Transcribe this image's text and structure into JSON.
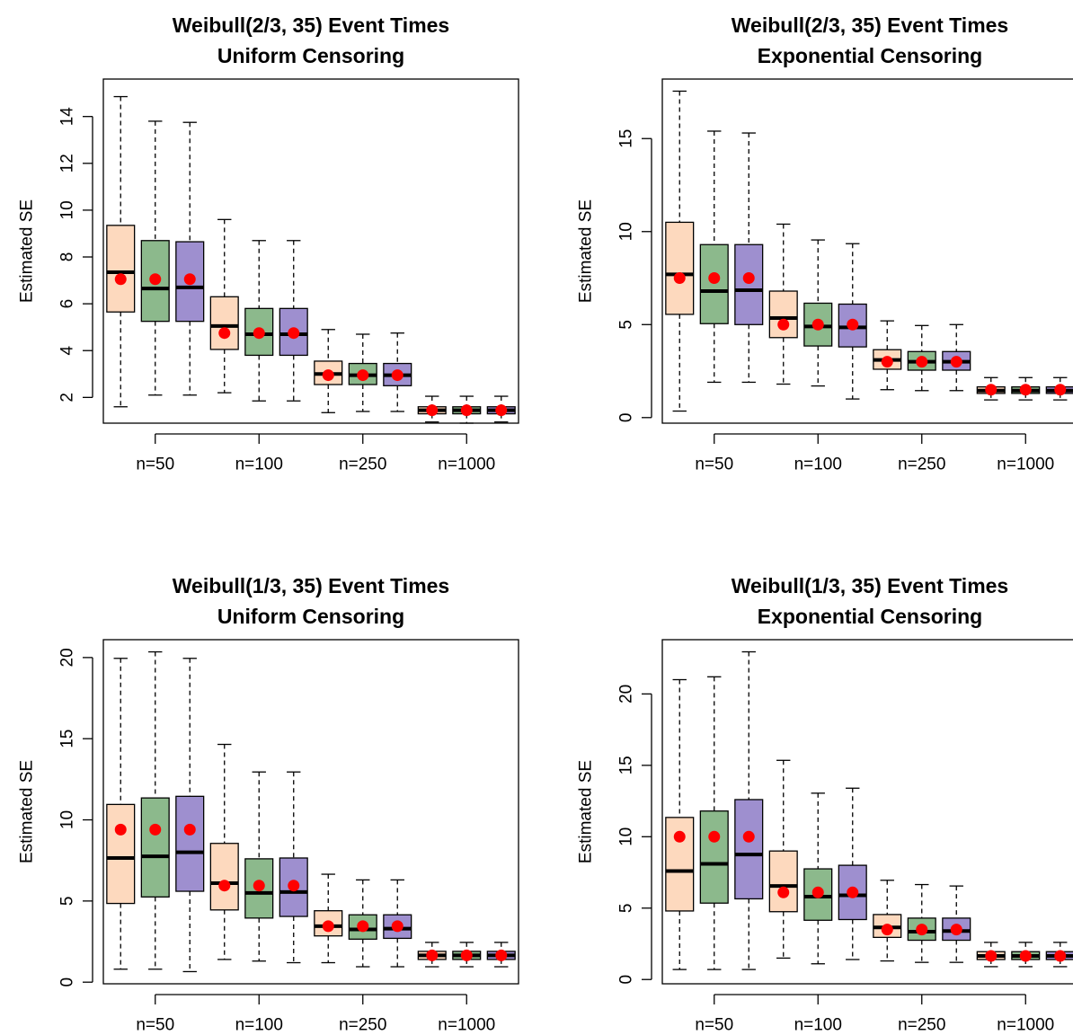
{
  "chart_data": [
    {
      "type": "box",
      "title_line1": "Weibull(2/3, 35) Event Times",
      "title_line2": "Uniform Censoring",
      "ylabel": "Estimated SE",
      "ylim": [
        0.9,
        15.6
      ],
      "yticks": [
        2,
        4,
        6,
        8,
        10,
        12,
        14
      ],
      "categories": [
        "n=50",
        "n=100",
        "n=250",
        "n=1000"
      ],
      "boxes": [
        {
          "group": "n=50",
          "fill": "#FDD9BE",
          "wlo": 1.6,
          "q1": 5.65,
          "med": 7.35,
          "q3": 9.35,
          "whi": 14.85,
          "mean": 7.05
        },
        {
          "group": "n=50",
          "fill": "#8CB98C",
          "wlo": 2.1,
          "q1": 5.25,
          "med": 6.65,
          "q3": 8.7,
          "whi": 13.8,
          "mean": 7.05
        },
        {
          "group": "n=50",
          "fill": "#9E8FCF",
          "wlo": 2.1,
          "q1": 5.25,
          "med": 6.7,
          "q3": 8.65,
          "whi": 13.75,
          "mean": 7.05
        },
        {
          "group": "n=100",
          "fill": "#FDD9BE",
          "wlo": 2.2,
          "q1": 4.05,
          "med": 5.05,
          "q3": 6.3,
          "whi": 9.6,
          "mean": 4.75
        },
        {
          "group": "n=100",
          "fill": "#8CB98C",
          "wlo": 1.85,
          "q1": 3.8,
          "med": 4.7,
          "q3": 5.8,
          "whi": 8.7,
          "mean": 4.75
        },
        {
          "group": "n=100",
          "fill": "#9E8FCF",
          "wlo": 1.85,
          "q1": 3.8,
          "med": 4.7,
          "q3": 5.8,
          "whi": 8.7,
          "mean": 4.75
        },
        {
          "group": "n=250",
          "fill": "#FDD9BE",
          "wlo": 1.35,
          "q1": 2.55,
          "med": 3.0,
          "q3": 3.55,
          "whi": 4.9,
          "mean": 2.95
        },
        {
          "group": "n=250",
          "fill": "#8CB98C",
          "wlo": 1.4,
          "q1": 2.55,
          "med": 2.95,
          "q3": 3.45,
          "whi": 4.7,
          "mean": 2.95
        },
        {
          "group": "n=250",
          "fill": "#9E8FCF",
          "wlo": 1.4,
          "q1": 2.5,
          "med": 2.95,
          "q3": 3.45,
          "whi": 4.75,
          "mean": 2.95
        },
        {
          "group": "n=1000",
          "fill": "#FDD9BE",
          "wlo": 0.95,
          "q1": 1.3,
          "med": 1.45,
          "q3": 1.6,
          "whi": 2.05,
          "mean": 1.45
        },
        {
          "group": "n=1000",
          "fill": "#8CB98C",
          "wlo": 0.9,
          "q1": 1.3,
          "med": 1.45,
          "q3": 1.6,
          "whi": 2.05,
          "mean": 1.45
        },
        {
          "group": "n=1000",
          "fill": "#9E8FCF",
          "wlo": 0.95,
          "q1": 1.3,
          "med": 1.45,
          "q3": 1.6,
          "whi": 2.05,
          "mean": 1.45
        }
      ]
    },
    {
      "type": "box",
      "title_line1": "Weibull(2/3, 35) Event Times",
      "title_line2": "Exponential Censoring",
      "ylabel": "Estimated SE",
      "ylim": [
        -0.3,
        18.2
      ],
      "yticks": [
        0,
        5,
        10,
        15
      ],
      "categories": [
        "n=50",
        "n=100",
        "n=250",
        "n=1000"
      ],
      "boxes": [
        {
          "group": "n=50",
          "fill": "#FDD9BE",
          "wlo": 0.35,
          "q1": 5.55,
          "med": 7.7,
          "q3": 10.5,
          "whi": 17.55,
          "mean": 7.5
        },
        {
          "group": "n=50",
          "fill": "#8CB98C",
          "wlo": 1.9,
          "q1": 5.05,
          "med": 6.8,
          "q3": 9.3,
          "whi": 15.4,
          "mean": 7.5
        },
        {
          "group": "n=50",
          "fill": "#9E8FCF",
          "wlo": 1.9,
          "q1": 5.0,
          "med": 6.85,
          "q3": 9.3,
          "whi": 15.3,
          "mean": 7.5
        },
        {
          "group": "n=100",
          "fill": "#FDD9BE",
          "wlo": 1.8,
          "q1": 4.3,
          "med": 5.35,
          "q3": 6.8,
          "whi": 10.4,
          "mean": 5.0
        },
        {
          "group": "n=100",
          "fill": "#8CB98C",
          "wlo": 1.7,
          "q1": 3.85,
          "med": 4.9,
          "q3": 6.15,
          "whi": 9.55,
          "mean": 5.0
        },
        {
          "group": "n=100",
          "fill": "#9E8FCF",
          "wlo": 1.0,
          "q1": 3.8,
          "med": 4.85,
          "q3": 6.1,
          "whi": 9.35,
          "mean": 5.0
        },
        {
          "group": "n=250",
          "fill": "#FDD9BE",
          "wlo": 1.5,
          "q1": 2.6,
          "med": 3.1,
          "q3": 3.65,
          "whi": 5.2,
          "mean": 3.0
        },
        {
          "group": "n=250",
          "fill": "#8CB98C",
          "wlo": 1.45,
          "q1": 2.55,
          "med": 3.0,
          "q3": 3.55,
          "whi": 4.95,
          "mean": 3.0
        },
        {
          "group": "n=250",
          "fill": "#9E8FCF",
          "wlo": 1.45,
          "q1": 2.55,
          "med": 3.0,
          "q3": 3.55,
          "whi": 5.0,
          "mean": 3.0
        },
        {
          "group": "n=1000",
          "fill": "#FDD9BE",
          "wlo": 0.95,
          "q1": 1.3,
          "med": 1.45,
          "q3": 1.65,
          "whi": 2.15,
          "mean": 1.5
        },
        {
          "group": "n=1000",
          "fill": "#8CB98C",
          "wlo": 0.95,
          "q1": 1.3,
          "med": 1.45,
          "q3": 1.65,
          "whi": 2.15,
          "mean": 1.5
        },
        {
          "group": "n=1000",
          "fill": "#9E8FCF",
          "wlo": 0.95,
          "q1": 1.3,
          "med": 1.45,
          "q3": 1.65,
          "whi": 2.15,
          "mean": 1.5
        }
      ]
    },
    {
      "type": "box",
      "title_line1": "Weibull(1/3, 35) Event Times",
      "title_line2": "Uniform Censoring",
      "ylabel": "Estimated SE",
      "ylim": [
        -0.1,
        21.1
      ],
      "yticks": [
        0,
        5,
        10,
        15,
        20
      ],
      "categories": [
        "n=50",
        "n=100",
        "n=250",
        "n=1000"
      ],
      "boxes": [
        {
          "group": "n=50",
          "fill": "#FDD9BE",
          "wlo": 0.8,
          "q1": 4.85,
          "med": 7.65,
          "q3": 10.95,
          "whi": 19.95,
          "mean": 9.4
        },
        {
          "group": "n=50",
          "fill": "#8CB98C",
          "wlo": 0.8,
          "q1": 5.25,
          "med": 7.75,
          "q3": 11.35,
          "whi": 20.35,
          "mean": 9.4
        },
        {
          "group": "n=50",
          "fill": "#9E8FCF",
          "wlo": 0.65,
          "q1": 5.6,
          "med": 8.0,
          "q3": 11.45,
          "whi": 19.95,
          "mean": 9.4
        },
        {
          "group": "n=100",
          "fill": "#FDD9BE",
          "wlo": 1.4,
          "q1": 4.45,
          "med": 6.1,
          "q3": 8.55,
          "whi": 14.65,
          "mean": 5.95
        },
        {
          "group": "n=100",
          "fill": "#8CB98C",
          "wlo": 1.3,
          "q1": 3.95,
          "med": 5.5,
          "q3": 7.6,
          "whi": 12.95,
          "mean": 5.95
        },
        {
          "group": "n=100",
          "fill": "#9E8FCF",
          "wlo": 1.2,
          "q1": 4.05,
          "med": 5.55,
          "q3": 7.65,
          "whi": 12.95,
          "mean": 5.95
        },
        {
          "group": "n=250",
          "fill": "#FDD9BE",
          "wlo": 1.2,
          "q1": 2.85,
          "med": 3.45,
          "q3": 4.4,
          "whi": 6.65,
          "mean": 3.45
        },
        {
          "group": "n=250",
          "fill": "#8CB98C",
          "wlo": 0.95,
          "q1": 2.65,
          "med": 3.25,
          "q3": 4.15,
          "whi": 6.3,
          "mean": 3.45
        },
        {
          "group": "n=250",
          "fill": "#9E8FCF",
          "wlo": 0.95,
          "q1": 2.7,
          "med": 3.3,
          "q3": 4.15,
          "whi": 6.3,
          "mean": 3.45
        },
        {
          "group": "n=1000",
          "fill": "#FDD9BE",
          "wlo": 0.95,
          "q1": 1.4,
          "med": 1.65,
          "q3": 1.9,
          "whi": 2.45,
          "mean": 1.65
        },
        {
          "group": "n=1000",
          "fill": "#8CB98C",
          "wlo": 0.95,
          "q1": 1.4,
          "med": 1.65,
          "q3": 1.9,
          "whi": 2.45,
          "mean": 1.65
        },
        {
          "group": "n=1000",
          "fill": "#9E8FCF",
          "wlo": 0.95,
          "q1": 1.4,
          "med": 1.65,
          "q3": 1.9,
          "whi": 2.45,
          "mean": 1.65
        }
      ]
    },
    {
      "type": "box",
      "title_line1": "Weibull(1/3, 35) Event Times",
      "title_line2": "Exponential Censoring",
      "ylabel": "Estimated SE",
      "ylim": [
        -0.3,
        23.8
      ],
      "yticks": [
        0,
        5,
        10,
        15,
        20
      ],
      "categories": [
        "n=50",
        "n=100",
        "n=250",
        "n=1000"
      ],
      "boxes": [
        {
          "group": "n=50",
          "fill": "#FDD9BE",
          "wlo": 0.7,
          "q1": 4.8,
          "med": 7.6,
          "q3": 11.35,
          "whi": 21.0,
          "mean": 10.0
        },
        {
          "group": "n=50",
          "fill": "#8CB98C",
          "wlo": 0.7,
          "q1": 5.35,
          "med": 8.1,
          "q3": 11.8,
          "whi": 21.2,
          "mean": 10.0
        },
        {
          "group": "n=50",
          "fill": "#9E8FCF",
          "wlo": 0.7,
          "q1": 5.65,
          "med": 8.75,
          "q3": 12.6,
          "whi": 22.95,
          "mean": 10.0
        },
        {
          "group": "n=100",
          "fill": "#FDD9BE",
          "wlo": 1.5,
          "q1": 4.75,
          "med": 6.55,
          "q3": 9.0,
          "whi": 15.35,
          "mean": 6.1
        },
        {
          "group": "n=100",
          "fill": "#8CB98C",
          "wlo": 1.1,
          "q1": 4.15,
          "med": 5.8,
          "q3": 7.75,
          "whi": 13.05,
          "mean": 6.1
        },
        {
          "group": "n=100",
          "fill": "#9E8FCF",
          "wlo": 1.4,
          "q1": 4.2,
          "med": 5.9,
          "q3": 8.0,
          "whi": 13.4,
          "mean": 6.1
        },
        {
          "group": "n=250",
          "fill": "#FDD9BE",
          "wlo": 1.3,
          "q1": 2.95,
          "med": 3.65,
          "q3": 4.55,
          "whi": 6.95,
          "mean": 3.5
        },
        {
          "group": "n=250",
          "fill": "#8CB98C",
          "wlo": 1.2,
          "q1": 2.75,
          "med": 3.35,
          "q3": 4.3,
          "whi": 6.65,
          "mean": 3.5
        },
        {
          "group": "n=250",
          "fill": "#9E8FCF",
          "wlo": 1.2,
          "q1": 2.75,
          "med": 3.4,
          "q3": 4.3,
          "whi": 6.55,
          "mean": 3.5
        },
        {
          "group": "n=1000",
          "fill": "#FDD9BE",
          "wlo": 0.9,
          "q1": 1.4,
          "med": 1.65,
          "q3": 1.95,
          "whi": 2.6,
          "mean": 1.65
        },
        {
          "group": "n=1000",
          "fill": "#8CB98C",
          "wlo": 0.9,
          "q1": 1.4,
          "med": 1.65,
          "q3": 1.95,
          "whi": 2.6,
          "mean": 1.65
        },
        {
          "group": "n=1000",
          "fill": "#9E8FCF",
          "wlo": 0.9,
          "q1": 1.4,
          "med": 1.65,
          "q3": 1.95,
          "whi": 2.6,
          "mean": 1.65
        }
      ]
    }
  ],
  "colors": {
    "mean_point": "#FF0000",
    "box_stroke": "#000000"
  }
}
